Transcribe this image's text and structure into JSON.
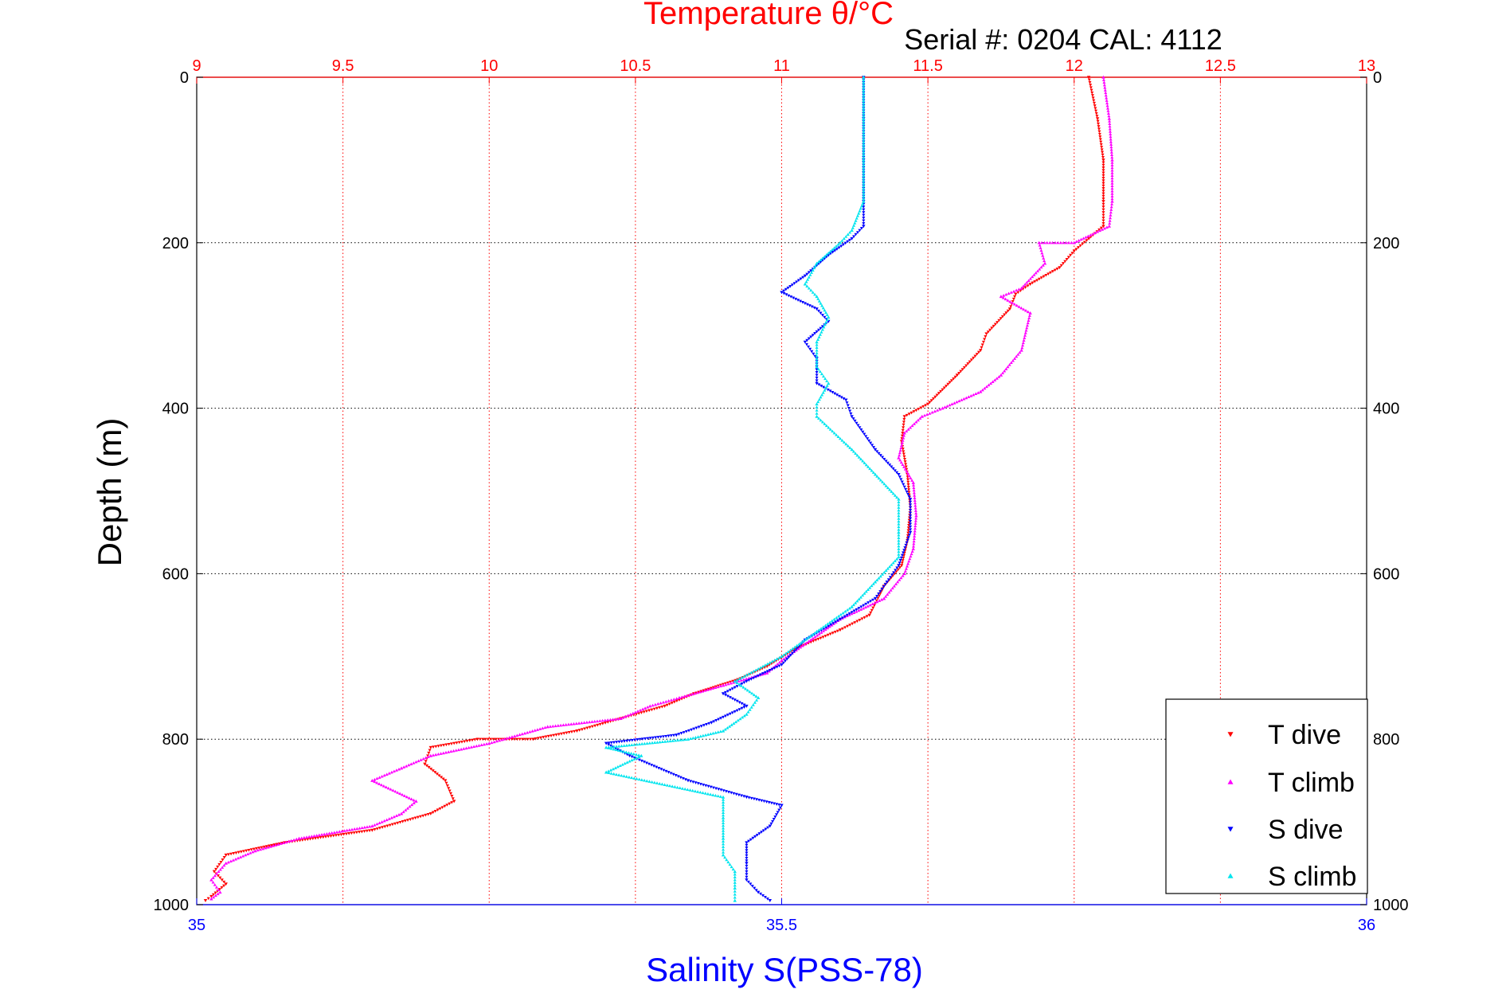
{
  "header": {
    "serial_text": "Serial #: 0204  CAL: 4112"
  },
  "colors": {
    "t_dive": "#ff0000",
    "t_climb": "#ff00ff",
    "s_dive": "#0000ff",
    "s_climb": "#00e5ee",
    "temperature_axis": "#ff0000",
    "salinity_axis": "#0000ff",
    "depth_axis": "#000000"
  },
  "chart_data": {
    "type": "scatter",
    "title": "Temperature θ/°C",
    "xlabel": "Salinity S(PSS-78)",
    "ylabel": "Depth (m)",
    "top_axis": {
      "label": "Temperature θ/°C",
      "range": [
        9,
        13
      ],
      "ticks": [
        "9",
        "9.5",
        "10",
        "10.5",
        "11",
        "11.5",
        "12",
        "12.5",
        "13"
      ]
    },
    "bottom_axis": {
      "label": "Salinity S(PSS-78)",
      "range": [
        35,
        36
      ],
      "ticks": [
        "35",
        "35.5",
        "36"
      ]
    },
    "depth_axis": {
      "range": [
        0,
        1000
      ],
      "reversed": true,
      "ticks": [
        "0",
        "200",
        "400",
        "600",
        "800",
        "1000"
      ]
    },
    "grid": true,
    "legend_position": "bottom-right",
    "series": [
      {
        "name": "T dive",
        "axis": "temperature",
        "marker": "triangle-down",
        "points": [
          [
            12.05,
            0
          ],
          [
            12.08,
            50
          ],
          [
            12.1,
            100
          ],
          [
            12.1,
            150
          ],
          [
            12.1,
            180
          ],
          [
            12.05,
            195
          ],
          [
            12.0,
            210
          ],
          [
            11.95,
            230
          ],
          [
            11.85,
            250
          ],
          [
            11.8,
            262
          ],
          [
            11.78,
            280
          ],
          [
            11.7,
            310
          ],
          [
            11.68,
            330
          ],
          [
            11.6,
            360
          ],
          [
            11.5,
            395
          ],
          [
            11.42,
            410
          ],
          [
            11.41,
            440
          ],
          [
            11.43,
            480
          ],
          [
            11.44,
            520
          ],
          [
            11.43,
            560
          ],
          [
            11.41,
            590
          ],
          [
            11.35,
            615
          ],
          [
            11.3,
            650
          ],
          [
            11.2,
            668
          ],
          [
            11.05,
            690
          ],
          [
            10.95,
            712
          ],
          [
            10.85,
            728
          ],
          [
            10.7,
            745
          ],
          [
            10.6,
            760
          ],
          [
            10.45,
            775
          ],
          [
            10.3,
            790
          ],
          [
            10.15,
            800
          ],
          [
            9.96,
            800
          ],
          [
            9.8,
            810
          ],
          [
            9.78,
            830
          ],
          [
            9.85,
            850
          ],
          [
            9.88,
            875
          ],
          [
            9.8,
            890
          ],
          [
            9.6,
            910
          ],
          [
            9.3,
            925
          ],
          [
            9.1,
            940
          ],
          [
            9.06,
            960
          ],
          [
            9.1,
            975
          ],
          [
            9.05,
            990
          ],
          [
            9.03,
            995
          ]
        ]
      },
      {
        "name": "T climb",
        "axis": "temperature",
        "marker": "triangle-up",
        "points": [
          [
            12.1,
            0
          ],
          [
            12.12,
            50
          ],
          [
            12.13,
            100
          ],
          [
            12.13,
            150
          ],
          [
            12.12,
            180
          ],
          [
            12.0,
            200
          ],
          [
            11.88,
            200
          ],
          [
            11.9,
            225
          ],
          [
            11.82,
            255
          ],
          [
            11.75,
            265
          ],
          [
            11.85,
            285
          ],
          [
            11.82,
            330
          ],
          [
            11.75,
            360
          ],
          [
            11.68,
            380
          ],
          [
            11.55,
            400
          ],
          [
            11.48,
            410
          ],
          [
            11.42,
            430
          ],
          [
            11.4,
            460
          ],
          [
            11.45,
            490
          ],
          [
            11.46,
            530
          ],
          [
            11.45,
            570
          ],
          [
            11.42,
            600
          ],
          [
            11.35,
            630
          ],
          [
            11.2,
            655
          ],
          [
            11.1,
            680
          ],
          [
            11.0,
            705
          ],
          [
            10.95,
            720
          ],
          [
            10.8,
            735
          ],
          [
            10.65,
            750
          ],
          [
            10.55,
            760
          ],
          [
            10.45,
            775
          ],
          [
            10.2,
            785
          ],
          [
            10.0,
            805
          ],
          [
            9.8,
            820
          ],
          [
            9.7,
            835
          ],
          [
            9.6,
            850
          ],
          [
            9.75,
            875
          ],
          [
            9.7,
            890
          ],
          [
            9.6,
            905
          ],
          [
            9.35,
            920
          ],
          [
            9.2,
            935
          ],
          [
            9.1,
            950
          ],
          [
            9.05,
            970
          ],
          [
            9.08,
            985
          ],
          [
            9.05,
            993
          ]
        ]
      },
      {
        "name": "S dive",
        "axis": "salinity",
        "marker": "triangle-down",
        "points": [
          [
            35.57,
            0
          ],
          [
            35.57,
            50
          ],
          [
            35.57,
            100
          ],
          [
            35.57,
            150
          ],
          [
            35.57,
            180
          ],
          [
            35.56,
            195
          ],
          [
            35.54,
            215
          ],
          [
            35.52,
            240
          ],
          [
            35.5,
            260
          ],
          [
            35.53,
            280
          ],
          [
            35.54,
            295
          ],
          [
            35.52,
            320
          ],
          [
            35.53,
            340
          ],
          [
            35.53,
            370
          ],
          [
            35.555,
            390
          ],
          [
            35.56,
            410
          ],
          [
            35.58,
            450
          ],
          [
            35.6,
            480
          ],
          [
            35.61,
            510
          ],
          [
            35.61,
            550
          ],
          [
            35.6,
            590
          ],
          [
            35.59,
            610
          ],
          [
            35.58,
            630
          ],
          [
            35.55,
            655
          ],
          [
            35.52,
            680
          ],
          [
            35.5,
            710
          ],
          [
            35.47,
            730
          ],
          [
            35.45,
            745
          ],
          [
            35.47,
            760
          ],
          [
            35.44,
            780
          ],
          [
            35.41,
            795
          ],
          [
            35.35,
            805
          ],
          [
            35.37,
            820
          ],
          [
            35.42,
            850
          ],
          [
            35.47,
            870
          ],
          [
            35.5,
            880
          ],
          [
            35.49,
            905
          ],
          [
            35.47,
            925
          ],
          [
            35.47,
            950
          ],
          [
            35.47,
            970
          ],
          [
            35.48,
            985
          ],
          [
            35.49,
            995
          ]
        ]
      },
      {
        "name": "S climb",
        "axis": "salinity",
        "marker": "triangle-up",
        "points": [
          [
            35.57,
            0
          ],
          [
            35.57,
            50
          ],
          [
            35.57,
            100
          ],
          [
            35.57,
            150
          ],
          [
            35.56,
            185
          ],
          [
            35.55,
            200
          ],
          [
            35.53,
            225
          ],
          [
            35.52,
            250
          ],
          [
            35.53,
            265
          ],
          [
            35.54,
            290
          ],
          [
            35.53,
            320
          ],
          [
            35.53,
            350
          ],
          [
            35.54,
            370
          ],
          [
            35.53,
            395
          ],
          [
            35.53,
            410
          ],
          [
            35.56,
            450
          ],
          [
            35.58,
            480
          ],
          [
            35.6,
            510
          ],
          [
            35.6,
            550
          ],
          [
            35.6,
            580
          ],
          [
            35.58,
            610
          ],
          [
            35.56,
            640
          ],
          [
            35.53,
            670
          ],
          [
            35.5,
            700
          ],
          [
            35.46,
            730
          ],
          [
            35.48,
            750
          ],
          [
            35.47,
            770
          ],
          [
            35.45,
            790
          ],
          [
            35.42,
            800
          ],
          [
            35.35,
            810
          ],
          [
            35.38,
            820
          ],
          [
            35.35,
            840
          ],
          [
            35.45,
            870
          ],
          [
            35.45,
            895
          ],
          [
            35.45,
            920
          ],
          [
            35.45,
            940
          ],
          [
            35.46,
            960
          ],
          [
            35.46,
            980
          ],
          [
            35.46,
            995
          ]
        ]
      }
    ]
  }
}
